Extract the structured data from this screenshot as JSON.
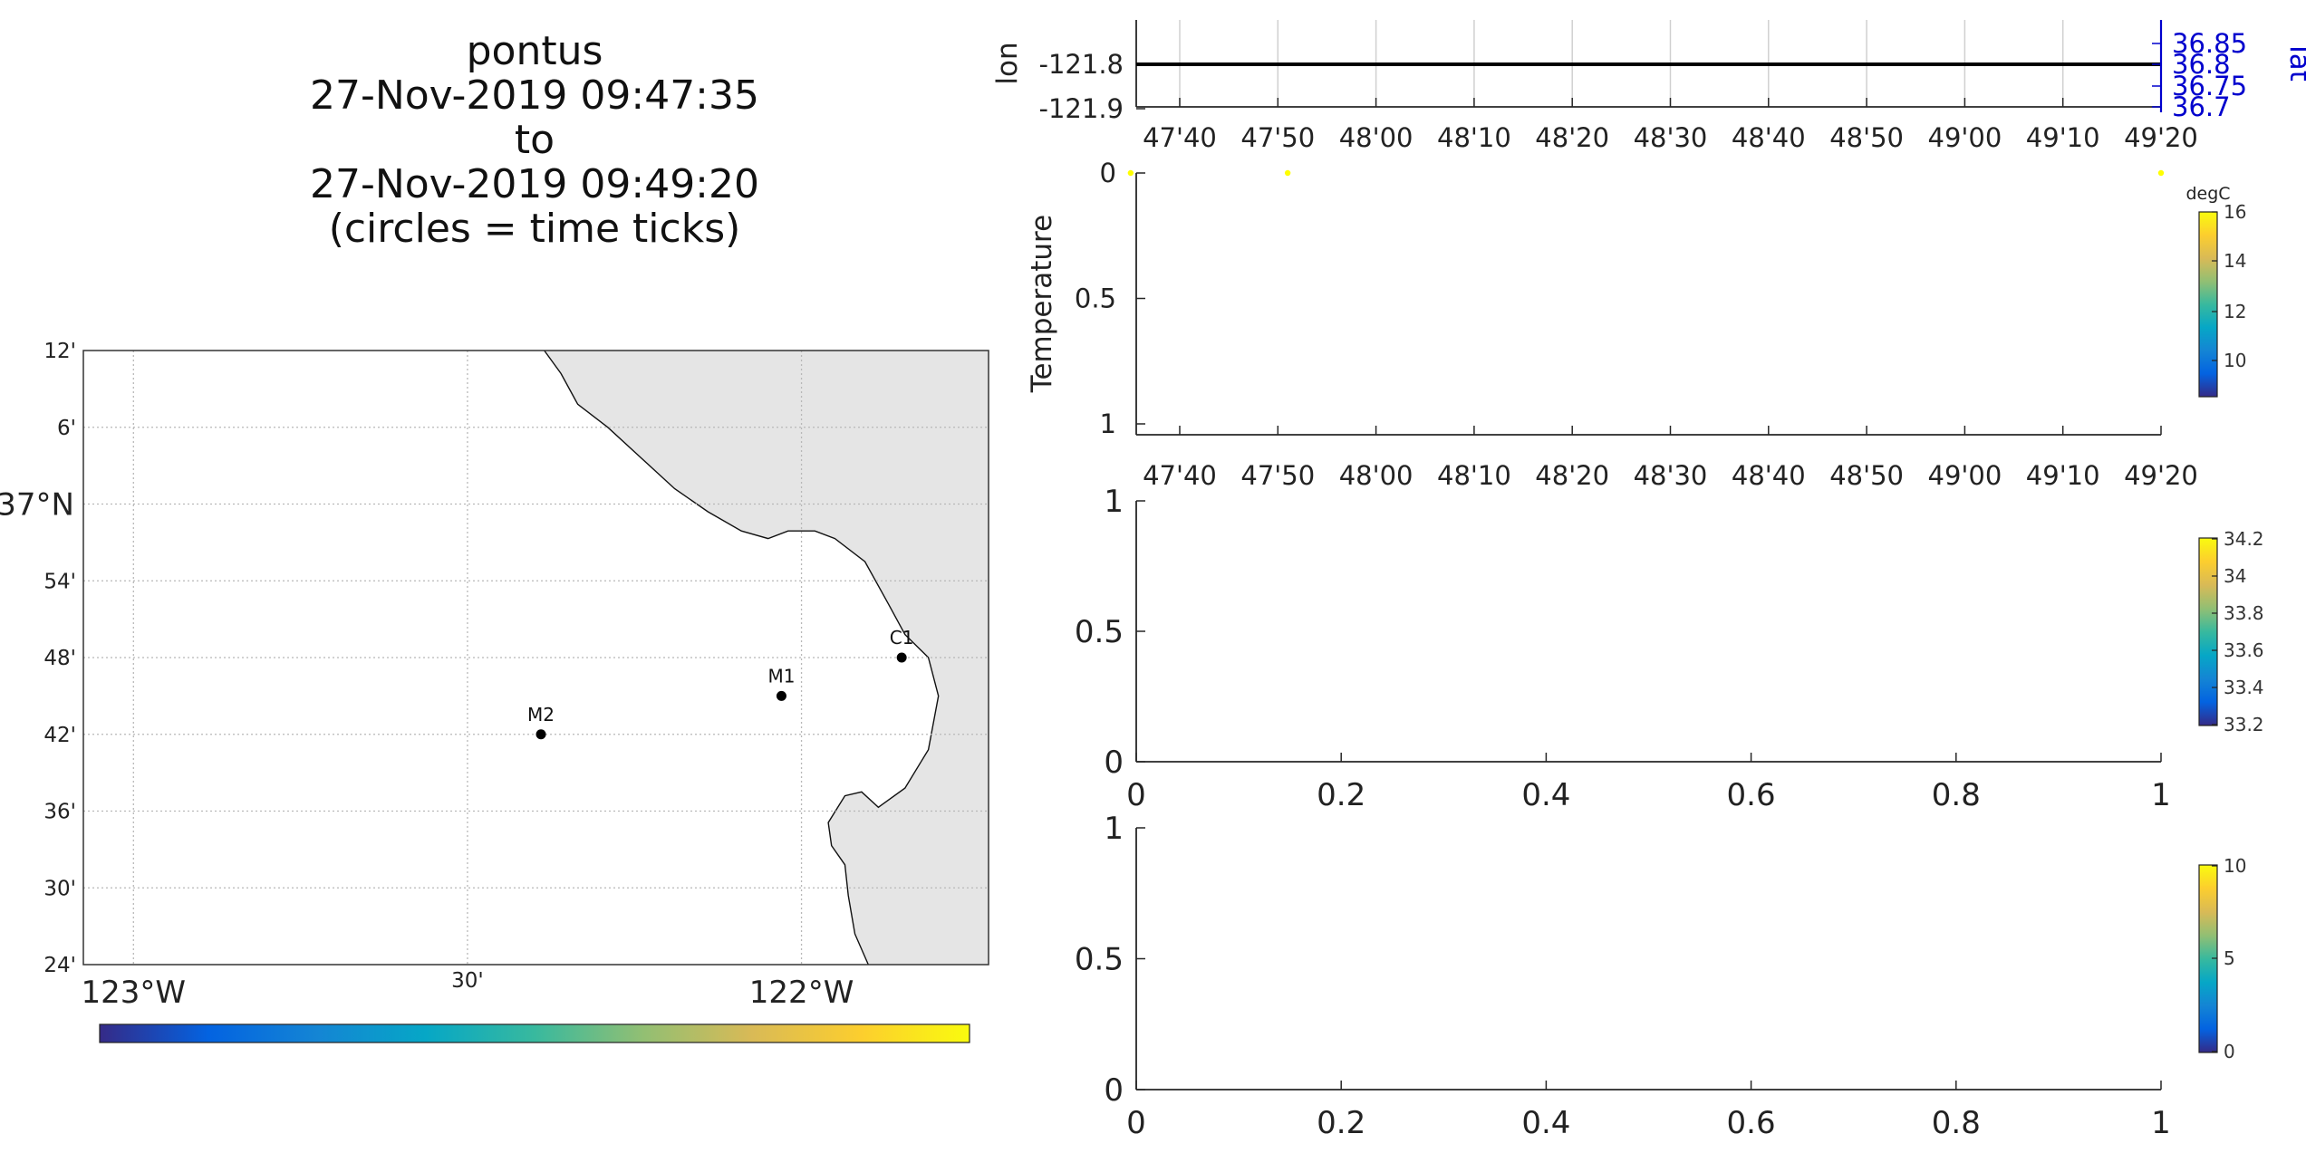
{
  "title_lines": [
    "pontus",
    "27-Nov-2019 09:47:35",
    "to",
    "27-Nov-2019 09:49:20",
    "(circles = time ticks)"
  ],
  "colors": {
    "land": "#e5e5e5",
    "grid": "#b8b8b8",
    "axis": "#262626",
    "lat_axis": "#0000cd",
    "scatter_point": "#ffff00",
    "parula": [
      "#352a87",
      "#0363e1",
      "#1485d4",
      "#06a7c6",
      "#38b99e",
      "#92bf73",
      "#d9ba56",
      "#fcce2e",
      "#f9fb0e"
    ]
  },
  "map": {
    "lat_ticks": [
      "12'",
      "6'",
      "37°N",
      "54'",
      "48'",
      "42'",
      "36'",
      "30'",
      "24'"
    ],
    "lon_ticks": [
      "123°W",
      "30'",
      "122°W"
    ],
    "stations": [
      {
        "name": "C1",
        "lon": -121.85,
        "lat": 36.8
      },
      {
        "name": "M1",
        "lon": -122.03,
        "lat": 36.75
      },
      {
        "name": "M2",
        "lon": -122.39,
        "lat": 36.7
      }
    ]
  },
  "chart_data": [
    {
      "type": "line",
      "ylabel": "lon",
      "y2label": "lat",
      "x_tick_labels": [
        "47'40",
        "47'50",
        "48'00",
        "48'10",
        "48'20",
        "48'30",
        "48'40",
        "48'50",
        "49'00",
        "49'10",
        "49'20"
      ],
      "y_tick_labels": [
        "-121.8",
        "-121.9"
      ],
      "y2_tick_labels": [
        "36.85",
        "36.8",
        "36.75",
        "36.7"
      ],
      "series": [
        {
          "values": [
            -121.8,
            -121.8
          ]
        }
      ]
    },
    {
      "type": "scatter",
      "ylabel": "Temperature",
      "x_tick_labels": [
        "47'40",
        "47'50",
        "48'00",
        "48'10",
        "48'20",
        "48'30",
        "48'40",
        "48'50",
        "49'00",
        "49'10",
        "49'20"
      ],
      "y_tick_labels": [
        "0",
        "0.5",
        "1"
      ],
      "points_time": [
        "47'35",
        "47'51",
        "49'20"
      ],
      "points_y": [
        0,
        0,
        0
      ],
      "colorbar": {
        "unit": "degC",
        "ticks": [
          "16",
          "14",
          "12",
          "10"
        ]
      }
    },
    {
      "type": "scatter",
      "x_tick_labels": [
        "0",
        "0.2",
        "0.4",
        "0.6",
        "0.8",
        "1"
      ],
      "y_tick_labels": [
        "1",
        "0.5",
        "0"
      ],
      "colorbar": {
        "ticks": [
          "34.2",
          "34",
          "33.8",
          "33.6",
          "33.4",
          "33.2"
        ]
      }
    },
    {
      "type": "scatter",
      "x_tick_labels": [
        "0",
        "0.2",
        "0.4",
        "0.6",
        "0.8",
        "1"
      ],
      "y_tick_labels": [
        "1",
        "0.5",
        "0"
      ],
      "colorbar": {
        "ticks": [
          "10",
          "5",
          "0"
        ]
      }
    }
  ]
}
